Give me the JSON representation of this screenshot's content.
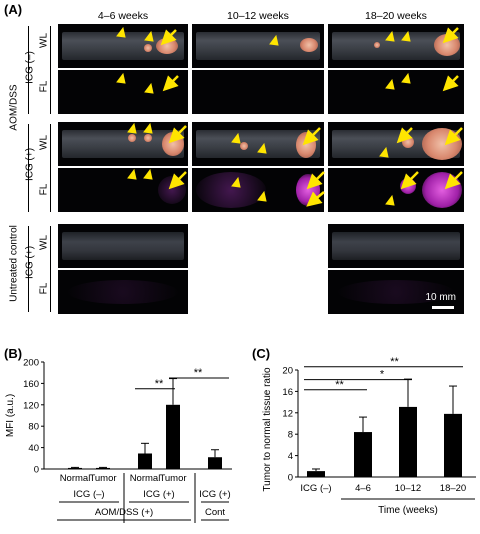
{
  "panelA": {
    "letter": "(A)",
    "col_headers": [
      "4–6 weeks",
      "10–12 weeks",
      "18–20 weeks"
    ],
    "group_labels": {
      "aom": "AOM/DSS",
      "untreated": "Untreated control"
    },
    "icg_labels": {
      "neg": "ICG (–)",
      "pos": "ICG (+)"
    },
    "row_labels": {
      "wl": "WL",
      "fl": "FL"
    },
    "scale_bar": "10 mm",
    "colors": {
      "arrow": "#ffe500",
      "fluorescence": "#c040c8",
      "lesion": "#d9896f"
    }
  },
  "panelB": {
    "letter": "(B)",
    "chart_data": {
      "type": "bar",
      "ylabel": "MFI (a.u.)",
      "ylim": [
        0,
        200
      ],
      "yticks": [
        0,
        40,
        80,
        120,
        160,
        200
      ],
      "categories": [
        "Normal",
        "Tumor",
        "Normal",
        "Tumor",
        ""
      ],
      "values": [
        2,
        2,
        29,
        120,
        22
      ],
      "errors": [
        1,
        1,
        19,
        49,
        14
      ],
      "group_labels": [
        {
          "label": "ICG (–)"
        },
        {
          "label": "ICG (+)"
        },
        {
          "label": "ICG (+)"
        }
      ],
      "super_groups": [
        {
          "label": "AOM/DSS (+)"
        },
        {
          "label": "Cont"
        }
      ],
      "significance": [
        {
          "label": "**"
        },
        {
          "label": "**"
        }
      ],
      "bar_color": "#000000"
    }
  },
  "panelC": {
    "letter": "(C)",
    "chart_data": {
      "type": "bar",
      "ylabel": "Tumor to normal tissue ratio",
      "xlabel": "Time (weeks)",
      "ylim": [
        0,
        20
      ],
      "yticks": [
        0,
        4,
        8,
        12,
        16,
        20
      ],
      "categories": [
        "ICG (–)",
        "4–6",
        "10–12",
        "18–20"
      ],
      "values": [
        1.1,
        8.4,
        13.1,
        11.8
      ],
      "errors": [
        0.4,
        2.8,
        5.2,
        5.2
      ],
      "significance": [
        {
          "label": "**"
        },
        {
          "label": "*"
        },
        {
          "label": "**"
        }
      ],
      "bar_color": "#000000"
    }
  }
}
